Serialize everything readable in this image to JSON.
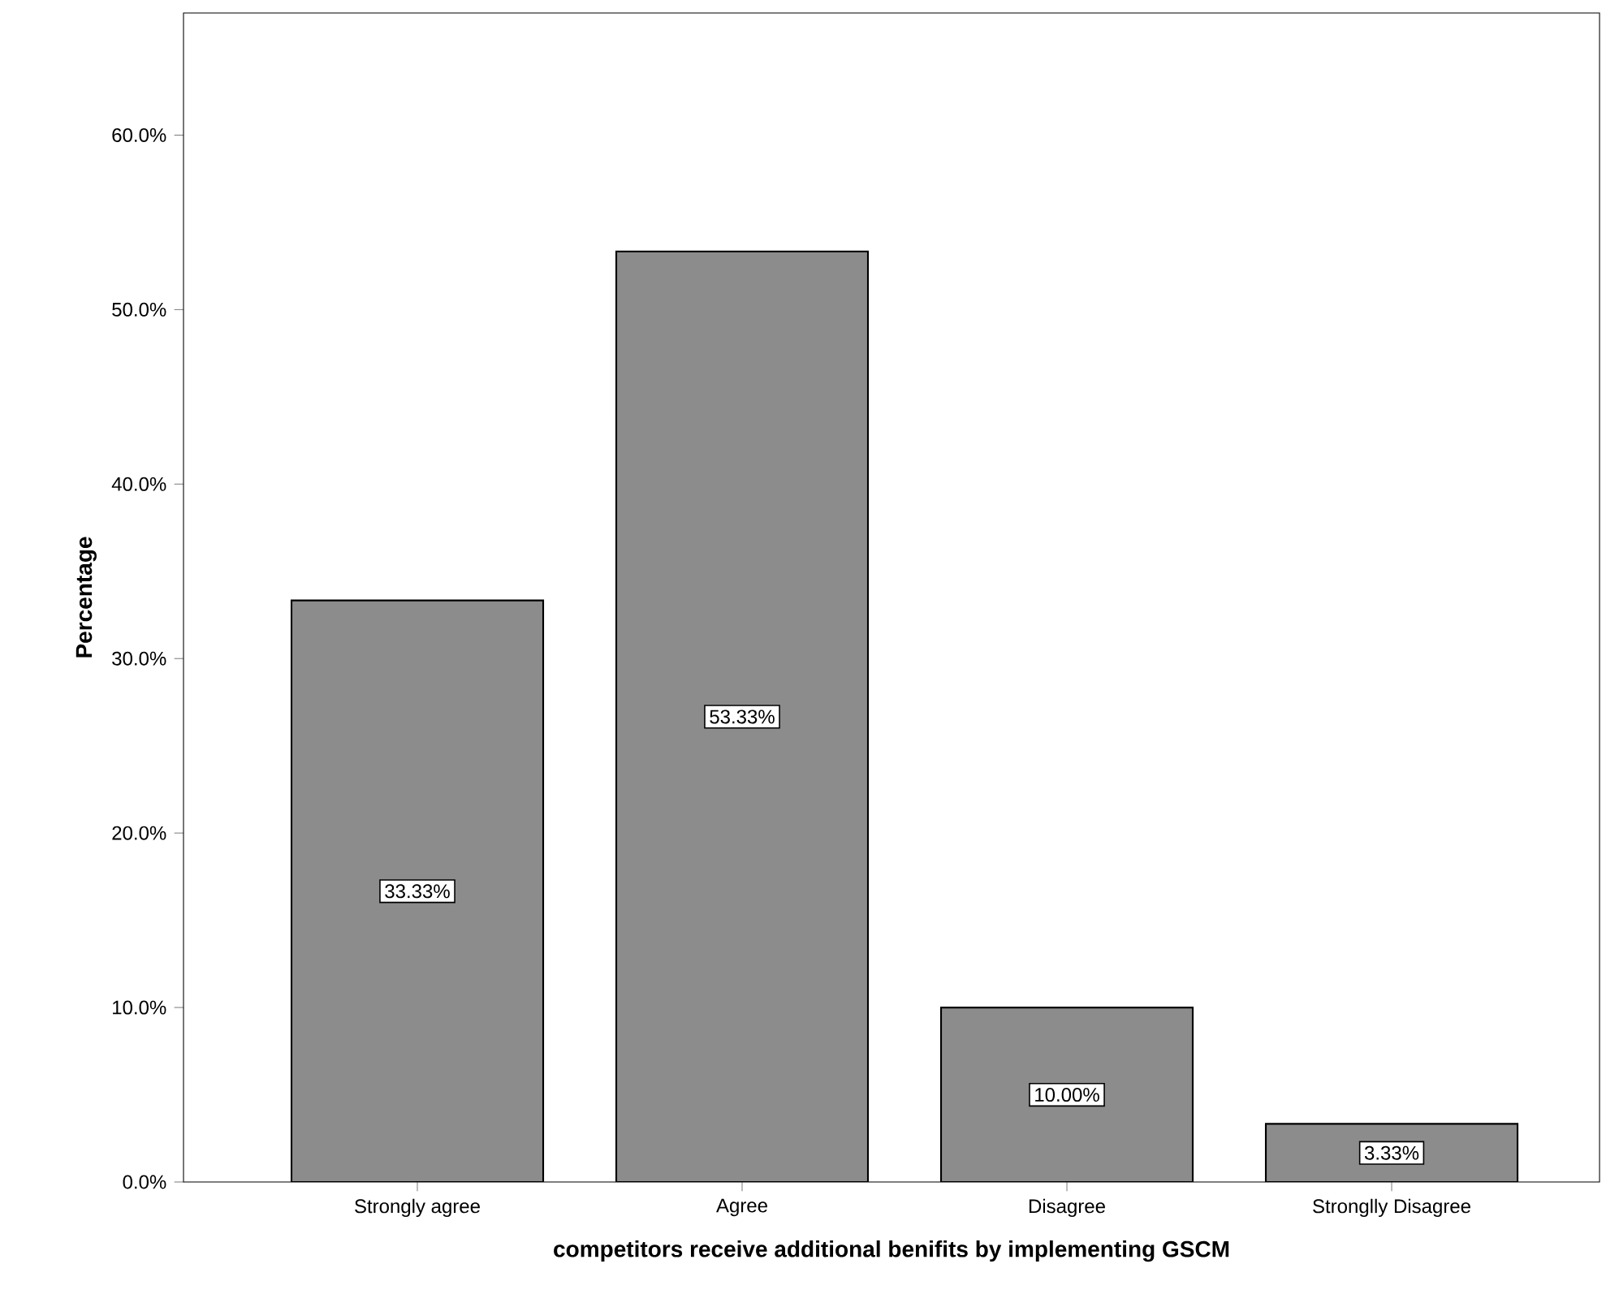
{
  "chart_data": {
    "type": "bar",
    "xlabel": "competitors receive additional benifits by implementing GSCM",
    "ylabel": "Percentage",
    "categories": [
      "Strongly agree",
      "Agree",
      "Disagree",
      "Stronglly Disagree"
    ],
    "values": [
      33.33,
      53.33,
      10.0,
      3.33
    ],
    "value_labels": [
      "33.33%",
      "53.33%",
      "10.00%",
      "3.33%"
    ],
    "color": "#8c8c8c",
    "ylim": [
      0,
      67
    ],
    "yticks": [
      {
        "value": 0,
        "label": "0.0%"
      },
      {
        "value": 10,
        "label": "10.0%"
      },
      {
        "value": 20,
        "label": "20.0%"
      },
      {
        "value": 30,
        "label": "30.0%"
      },
      {
        "value": 40,
        "label": "40.0%"
      },
      {
        "value": 50,
        "label": "50.0%"
      },
      {
        "value": 60,
        "label": "60.0%"
      }
    ],
    "tick_labels": true
  }
}
